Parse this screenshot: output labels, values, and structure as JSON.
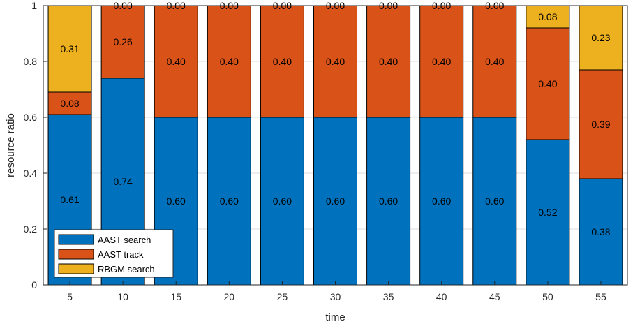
{
  "chart_data": {
    "type": "bar",
    "stacked": true,
    "categories": [
      "5",
      "10",
      "15",
      "20",
      "25",
      "30",
      "35",
      "40",
      "45",
      "50",
      "55"
    ],
    "series": [
      {
        "name": "AAST search",
        "color": "#0072BD",
        "values": [
          0.61,
          0.74,
          0.6,
          0.6,
          0.6,
          0.6,
          0.6,
          0.6,
          0.6,
          0.52,
          0.38
        ],
        "labels": [
          "0.61",
          "0.74",
          "0.60",
          "0.60",
          "0.60",
          "0.60",
          "0.60",
          "0.60",
          "0.60",
          "0.52",
          "0.38"
        ]
      },
      {
        "name": "AAST track",
        "color": "#D95319",
        "values": [
          0.08,
          0.26,
          0.4,
          0.4,
          0.4,
          0.4,
          0.4,
          0.4,
          0.4,
          0.4,
          0.39
        ],
        "labels": [
          "0.08",
          "0.26",
          "0.40",
          "0.40",
          "0.40",
          "0.40",
          "0.40",
          "0.40",
          "0.40",
          "0.40",
          "0.39"
        ]
      },
      {
        "name": "RBGM search",
        "color": "#EDB120",
        "values": [
          0.31,
          0.0,
          0.0,
          0.0,
          0.0,
          0.0,
          0.0,
          0.0,
          0.0,
          0.08,
          0.23
        ],
        "labels": [
          "0.31",
          "0.00",
          "0.00",
          "0.00",
          "0.00",
          "0.00",
          "0.00",
          "0.00",
          "0.00",
          "0.08",
          "0.23"
        ]
      }
    ],
    "xlabel": "time",
    "ylabel": "resource ratio",
    "ylim": [
      0,
      1
    ],
    "yticks": [
      "0",
      "0.2",
      "0.4",
      "0.6",
      "0.8",
      "1"
    ],
    "grid": true,
    "legend_position": "bottom-left"
  }
}
